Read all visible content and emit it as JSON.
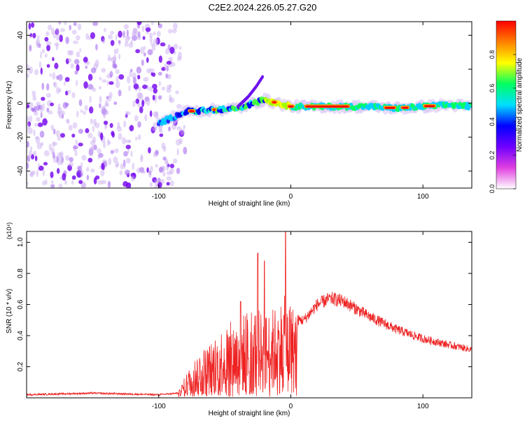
{
  "title": "C2E2.2024.226.05.27.G20",
  "chart_data": [
    {
      "type": "heatmap",
      "xlabel": "Height of straight line (km)",
      "ylabel": "Frequency (Hz)",
      "xlim": [
        -200,
        137
      ],
      "ylim": [
        -50,
        48
      ],
      "xticks": [
        -100,
        0,
        100
      ],
      "yticks": [
        -40,
        -20,
        0,
        20,
        40
      ],
      "colorbar": {
        "label": "Normalized spectral amplitude",
        "range": [
          0,
          1
        ],
        "ticks": [
          "0.0",
          "0.2",
          "0.4",
          "0.6",
          "0.8"
        ],
        "colors": [
          "#ffffff",
          "#e040e0",
          "#7000ff",
          "#0000ff",
          "#00e0ff",
          "#00ff60",
          "#ffff00",
          "#ff8000",
          "#ff0000"
        ]
      },
      "ridge": {
        "x": [
          -100,
          -80,
          -60,
          -40,
          -20,
          -10,
          0,
          20,
          40,
          60,
          80,
          100,
          120,
          137
        ],
        "y": [
          -12,
          -5,
          -4,
          -3,
          2,
          0,
          -2,
          -2,
          -2,
          -2,
          -3,
          -2,
          -1,
          -2
        ]
      },
      "branch": {
        "x": [
          -40,
          -32,
          -26,
          -21
        ],
        "y": [
          -2,
          4,
          10,
          16
        ]
      }
    },
    {
      "type": "line",
      "xlabel": "Height of straight line (km)",
      "ylabel": "SNR (10 * v/v)",
      "yscale_note": "(x10⁴)",
      "xlim": [
        -200,
        137
      ],
      "ylim": [
        0,
        1.07
      ],
      "xticks": [
        -100,
        0,
        100
      ],
      "yticks": [
        "0.2",
        "0.4",
        "0.6",
        "0.8",
        "1.0"
      ],
      "color": "#ee2222",
      "envelope": {
        "x": [
          -200,
          -150,
          -100,
          -85,
          -80,
          -70,
          -60,
          -50,
          -40,
          -30,
          -20,
          -10,
          -5,
          0,
          10,
          20,
          30,
          40,
          60,
          80,
          100,
          120,
          137
        ],
        "y": [
          0.02,
          0.03,
          0.02,
          0.03,
          0.12,
          0.25,
          0.3,
          0.4,
          0.42,
          0.5,
          0.45,
          0.5,
          0.55,
          0.5,
          0.5,
          0.6,
          0.64,
          0.62,
          0.52,
          0.44,
          0.38,
          0.34,
          0.31
        ]
      },
      "peaks": [
        {
          "x": -38,
          "y": 0.62
        },
        {
          "x": -25,
          "y": 0.93
        },
        {
          "x": -20,
          "y": 0.88
        },
        {
          "x": -4,
          "y": 1.07
        },
        {
          "x": 30,
          "y": 0.65
        }
      ]
    }
  ]
}
